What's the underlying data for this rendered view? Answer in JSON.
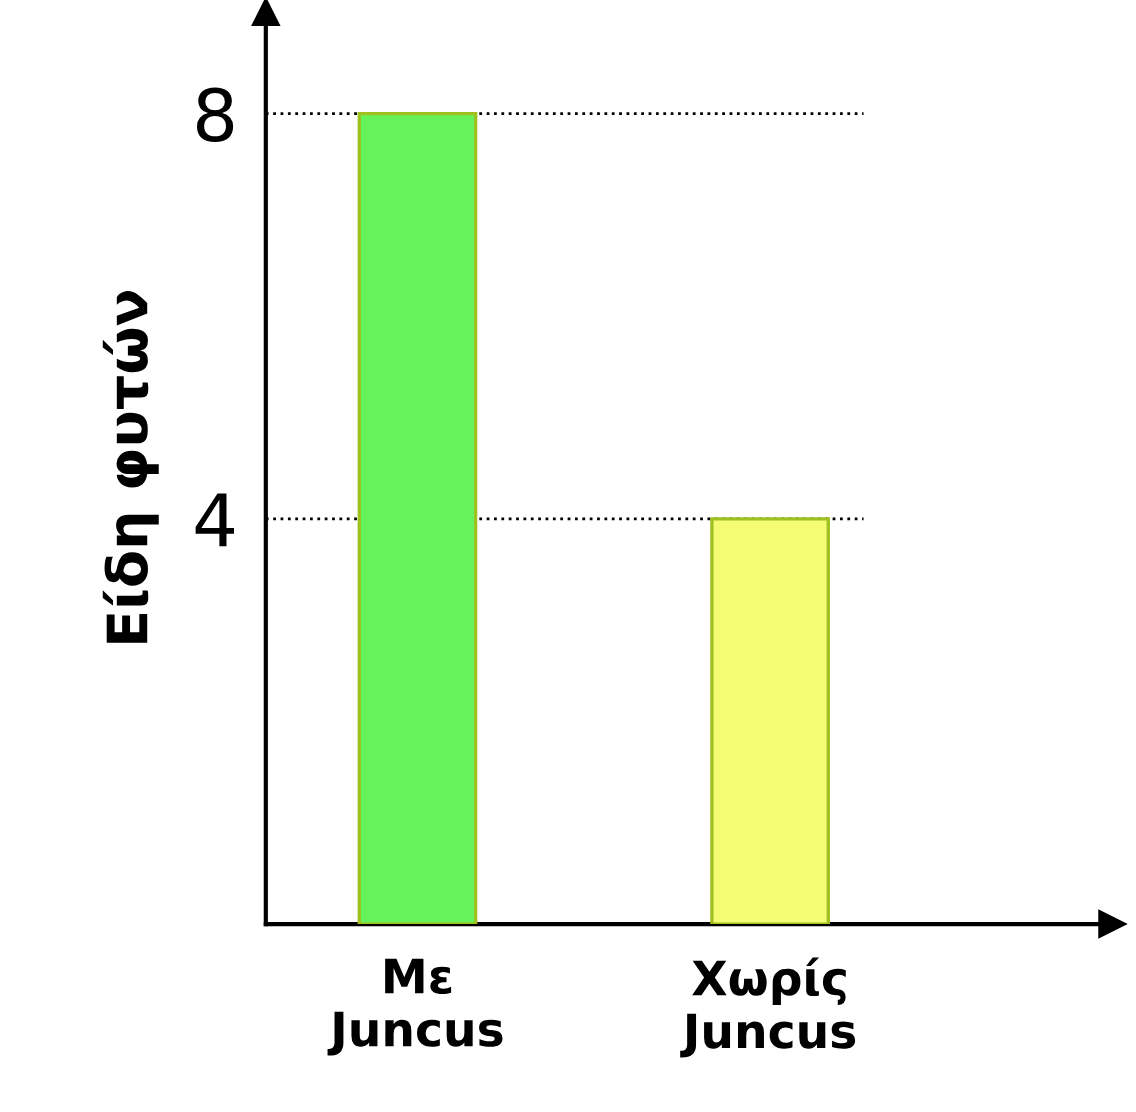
{
  "chart_data": {
    "type": "bar",
    "ylabel": "Είδη φυτών",
    "categories": [
      "Με Juncus",
      "Χωρίς Juncus"
    ],
    "values": [
      8,
      4
    ],
    "colors": [
      "#66f25a",
      "#f4fb74"
    ],
    "ylim": [
      0,
      9
    ],
    "yticks": [
      4,
      8
    ],
    "grid": "y"
  }
}
